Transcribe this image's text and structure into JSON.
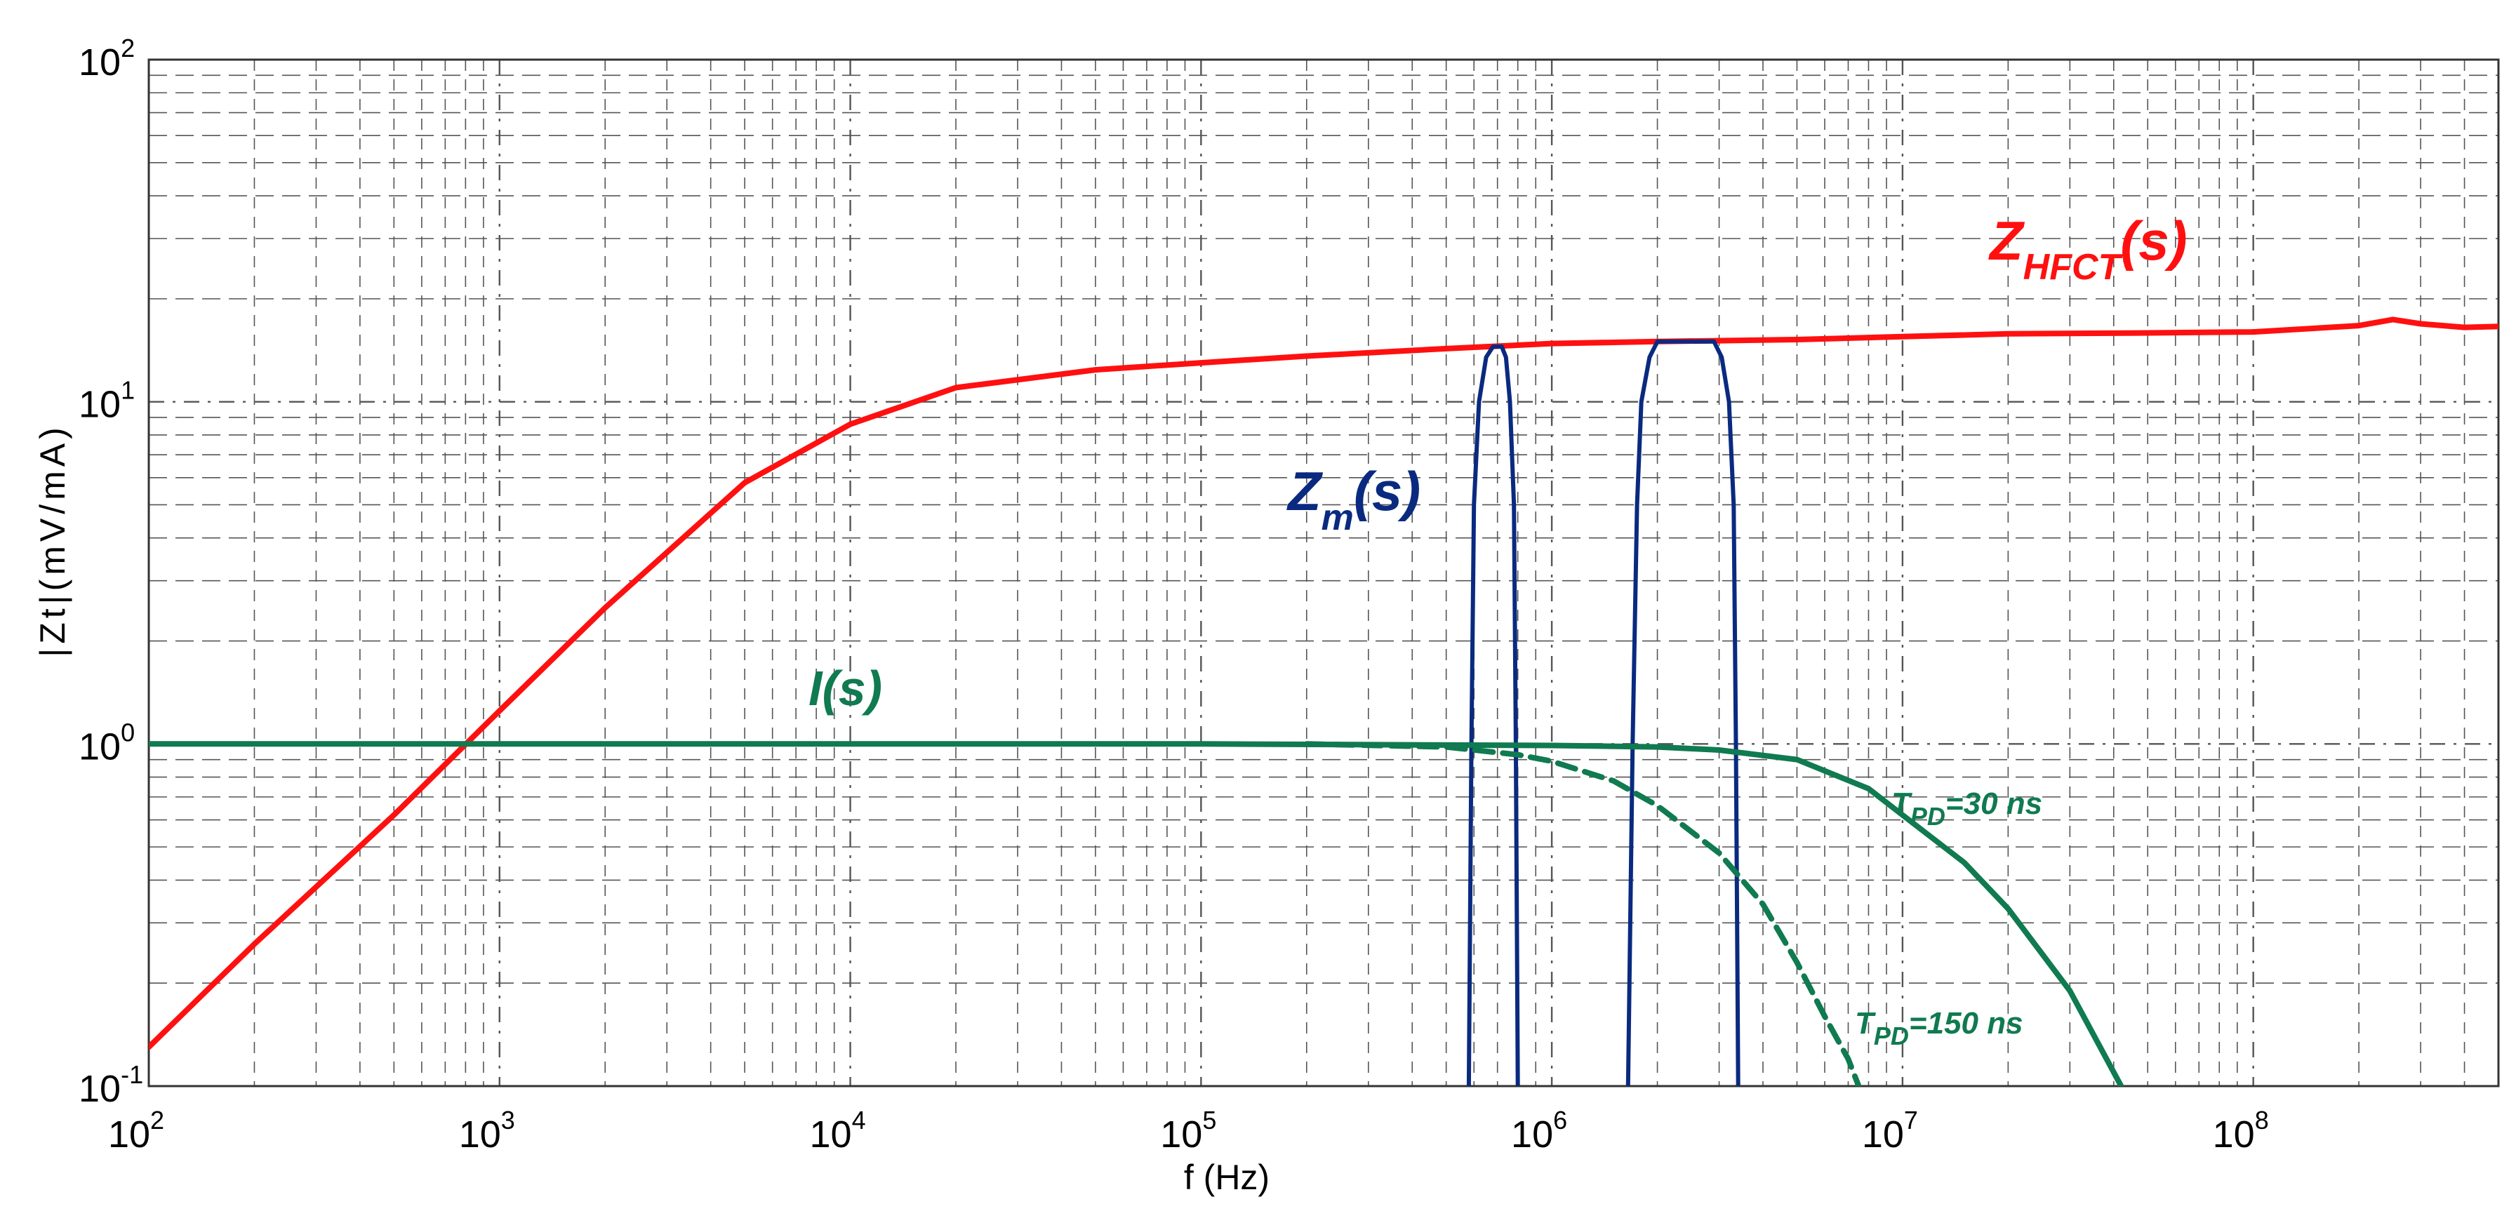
{
  "chart_data": {
    "type": "line",
    "title": "",
    "xlabel": "f (Hz)",
    "ylabel": "|Zt|(mV/mA)",
    "xscale": "log",
    "yscale": "log",
    "xlim": [
      100,
      500000000
    ],
    "ylim": [
      0.1,
      100
    ],
    "grid": true,
    "x_ticks": [
      {
        "base": "10",
        "exp": "2"
      },
      {
        "base": "10",
        "exp": "3"
      },
      {
        "base": "10",
        "exp": "4"
      },
      {
        "base": "10",
        "exp": "5"
      },
      {
        "base": "10",
        "exp": "6"
      },
      {
        "base": "10",
        "exp": "7"
      },
      {
        "base": "10",
        "exp": "8"
      }
    ],
    "y_ticks": [
      {
        "base": "10",
        "exp": "-1"
      },
      {
        "base": "10",
        "exp": "0"
      },
      {
        "base": "10",
        "exp": "1"
      },
      {
        "base": "10",
        "exp": "2"
      }
    ],
    "colors": {
      "zhfct": "#ff1010",
      "zm": "#0a2a80",
      "is": "#107a50",
      "grid": "#555555"
    },
    "series": [
      {
        "name": "Z_HFCT(s)",
        "style": "solid",
        "x": [
          100,
          200,
          500,
          1000,
          2000,
          5000,
          10000,
          20000,
          50000,
          100000,
          200000,
          500000,
          1000000,
          2000000,
          5000000,
          10000000,
          20000000,
          50000000,
          100000000,
          200000000,
          250000000,
          300000000,
          400000000,
          500000000
        ],
        "y": [
          0.13,
          0.26,
          0.62,
          1.25,
          2.5,
          5.8,
          8.6,
          11.0,
          12.4,
          13.0,
          13.6,
          14.3,
          14.8,
          15.0,
          15.2,
          15.5,
          15.8,
          15.9,
          16.0,
          16.7,
          17.4,
          16.9,
          16.5,
          16.6
        ]
      },
      {
        "name": "Z_m(s) band 1",
        "style": "solid",
        "x": [
          580000,
          590000,
          600000,
          620000,
          650000,
          680000,
          720000,
          740000,
          760000,
          780000,
          790000,
          800000
        ],
        "y": [
          0.1,
          1.0,
          5.0,
          10.0,
          13.5,
          14.5,
          14.5,
          13.5,
          10.0,
          5.0,
          1.0,
          0.1
        ]
      },
      {
        "name": "Z_m(s) band 2",
        "style": "solid",
        "x": [
          1650000,
          1700000,
          1750000,
          1800000,
          1900000,
          2000000,
          2900000,
          3050000,
          3200000,
          3300000,
          3350000,
          3400000
        ],
        "y": [
          0.1,
          1.0,
          5.0,
          10.0,
          13.5,
          15.0,
          15.0,
          13.5,
          10.0,
          5.0,
          1.0,
          0.1
        ]
      },
      {
        "name": "I(s)",
        "style": "solid",
        "x": [
          100,
          100000,
          1000000,
          2000000,
          3000000,
          5000000,
          8000000,
          10000000,
          15000000,
          20000000,
          30000000,
          42000000
        ],
        "y": [
          1.0,
          1.0,
          0.99,
          0.98,
          0.96,
          0.9,
          0.74,
          0.62,
          0.45,
          0.33,
          0.19,
          0.1
        ]
      },
      {
        "name": "T_PD=150 ns",
        "style": "dashed",
        "x": [
          200000,
          500000,
          800000,
          1000000,
          1500000,
          2000000,
          3000000,
          4000000,
          5000000,
          6000000,
          7000000,
          7500000
        ],
        "y": [
          1.0,
          0.98,
          0.93,
          0.89,
          0.78,
          0.66,
          0.48,
          0.34,
          0.23,
          0.16,
          0.12,
          0.1
        ]
      }
    ],
    "annotations": {
      "zhfct": {
        "main": "Z",
        "sub": "HFCT",
        "suffix": "(s)"
      },
      "zm": {
        "main": "Z",
        "sub": "m",
        "suffix": "(s)"
      },
      "is": {
        "text": "I(s)"
      },
      "tpd30": {
        "main": "T",
        "sub": "PD",
        "suffix": "=30 ns"
      },
      "tpd150": {
        "main": "T",
        "sub": "PD",
        "suffix": "=150 ns"
      }
    }
  }
}
